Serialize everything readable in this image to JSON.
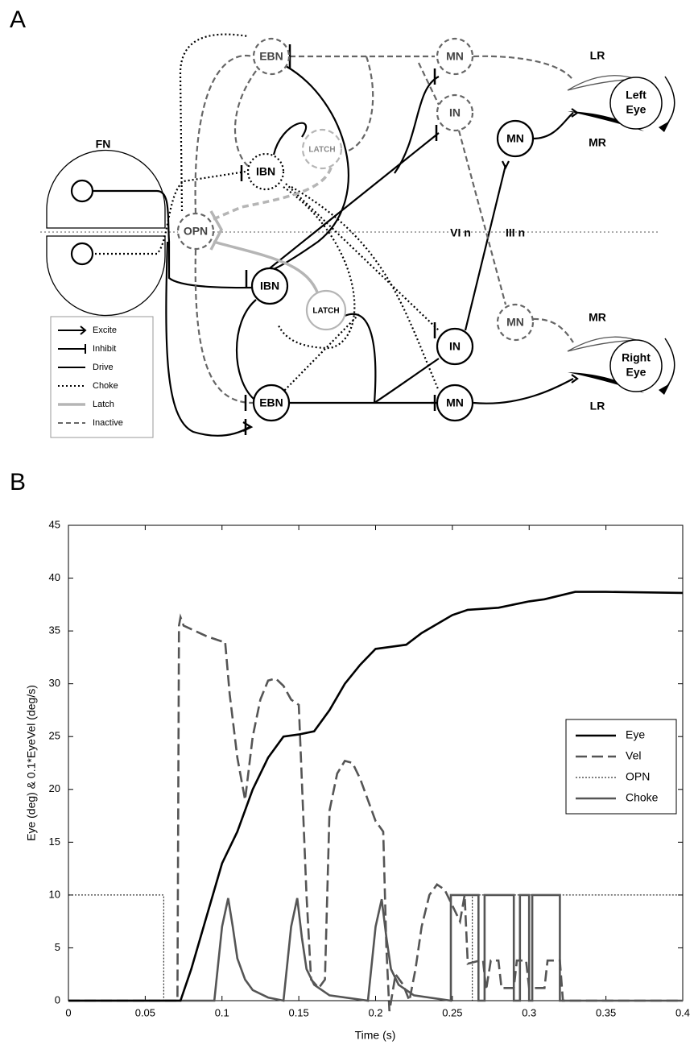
{
  "panel_labels": [
    "A",
    "B"
  ],
  "diagram": {
    "nodes": [
      "EBN",
      "MN",
      "IN",
      "MN",
      "LATCH",
      "IBN",
      "OPN",
      "IBN",
      "LATCH",
      "IN",
      "MN",
      "EBN",
      "MN"
    ],
    "eyes": [
      [
        "Left",
        "Eye"
      ],
      [
        "Right",
        "Eye"
      ]
    ],
    "labels": [
      "FN",
      "VI n",
      "III n",
      "LR",
      "MR",
      "MR",
      "LR"
    ],
    "legend": [
      "Excite",
      "Inhibit",
      "Drive",
      "Choke",
      "Latch",
      "Inactive"
    ]
  },
  "chart_data": {
    "type": "line",
    "x_label": "Time (s)",
    "y_label": "Eye (deg) & 0.1*EyeVel (deg/s)",
    "xlim": [
      0,
      0.4
    ],
    "ylim": [
      0,
      45
    ],
    "xticks": [
      0,
      0.05,
      0.1,
      0.15,
      0.2,
      0.25,
      0.3,
      0.35,
      0.4
    ],
    "yticks": [
      0,
      5,
      10,
      15,
      20,
      25,
      30,
      35,
      40,
      45
    ],
    "legend": "right",
    "series": [
      {
        "name": "Eye",
        "color": "#000000",
        "style": "solid",
        "x": [
          0,
          0.073,
          0.08,
          0.09,
          0.1,
          0.11,
          0.12,
          0.13,
          0.14,
          0.15,
          0.16,
          0.17,
          0.18,
          0.19,
          0.2,
          0.21,
          0.22,
          0.23,
          0.25,
          0.26,
          0.28,
          0.3,
          0.31,
          0.33,
          0.35,
          0.4
        ],
        "values": [
          0,
          0,
          3,
          8,
          13,
          16,
          20,
          23,
          25,
          25.2,
          25.5,
          27.5,
          30,
          31.8,
          33.3,
          33.5,
          33.7,
          34.8,
          36.5,
          37,
          37.2,
          37.8,
          38,
          38.7,
          38.7,
          38.6
        ]
      },
      {
        "name": "Vel",
        "color": "#555555",
        "style": "dashed",
        "x": [
          0,
          0.071,
          0.072,
          0.073,
          0.075,
          0.09,
          0.1,
          0.102,
          0.105,
          0.11,
          0.115,
          0.12,
          0.125,
          0.13,
          0.135,
          0.14,
          0.145,
          0.15,
          0.155,
          0.158,
          0.163,
          0.167,
          0.17,
          0.175,
          0.18,
          0.185,
          0.19,
          0.2,
          0.205,
          0.207,
          0.209,
          0.213,
          0.218,
          0.222,
          0.226,
          0.23,
          0.235,
          0.24,
          0.245,
          0.25,
          0.255,
          0.258,
          0.26,
          0.268,
          0.27,
          0.272,
          0.275,
          0.28,
          0.282,
          0.29,
          0.292,
          0.298,
          0.3,
          0.31,
          0.312,
          0.32,
          0.322,
          0.4
        ],
        "values": [
          0,
          0,
          35.5,
          36.3,
          35.5,
          34.5,
          34,
          34,
          29,
          23,
          19,
          25,
          28.5,
          30.3,
          30.5,
          29.8,
          28.5,
          28,
          10,
          2,
          1.2,
          2,
          18,
          21.5,
          22.7,
          22.5,
          21,
          17,
          16,
          5,
          -1,
          2.5,
          1.5,
          0,
          3,
          7,
          10,
          11,
          10.5,
          9,
          7.5,
          10,
          3.5,
          3.8,
          3.8,
          1,
          3.8,
          3.8,
          1.2,
          1.2,
          3.8,
          3.8,
          1.2,
          1.2,
          3.8,
          3.8,
          0,
          0
        ]
      },
      {
        "name": "OPN",
        "color": "#000000",
        "style": "dotted",
        "x": [
          0,
          0.062,
          0.062,
          0.263,
          0.263,
          0.4
        ],
        "values": [
          10,
          10,
          0,
          0,
          10,
          10
        ]
      },
      {
        "name": "Choke",
        "color": "#555555",
        "style": "solid",
        "x": [
          0,
          0.095,
          0.1,
          0.104,
          0.107,
          0.11,
          0.115,
          0.12,
          0.13,
          0.14,
          0.145,
          0.149,
          0.152,
          0.155,
          0.16,
          0.17,
          0.195,
          0.2,
          0.204,
          0.207,
          0.21,
          0.215,
          0.225,
          0.249,
          0.249,
          0.267,
          0.267,
          0.271,
          0.271,
          0.29,
          0.29,
          0.294,
          0.294,
          0.3,
          0.3,
          0.302,
          0.302,
          0.32,
          0.32,
          0.4
        ],
        "values": [
          0,
          0,
          7,
          9.7,
          7,
          4,
          2,
          1,
          0.3,
          0,
          7,
          9.7,
          6,
          3,
          1.5,
          0.5,
          0,
          7,
          9.6,
          6,
          3,
          1.5,
          0.5,
          0,
          10,
          10,
          0,
          0,
          10,
          10,
          0,
          0,
          10,
          10,
          0,
          0,
          10,
          10,
          0,
          0
        ]
      }
    ]
  }
}
